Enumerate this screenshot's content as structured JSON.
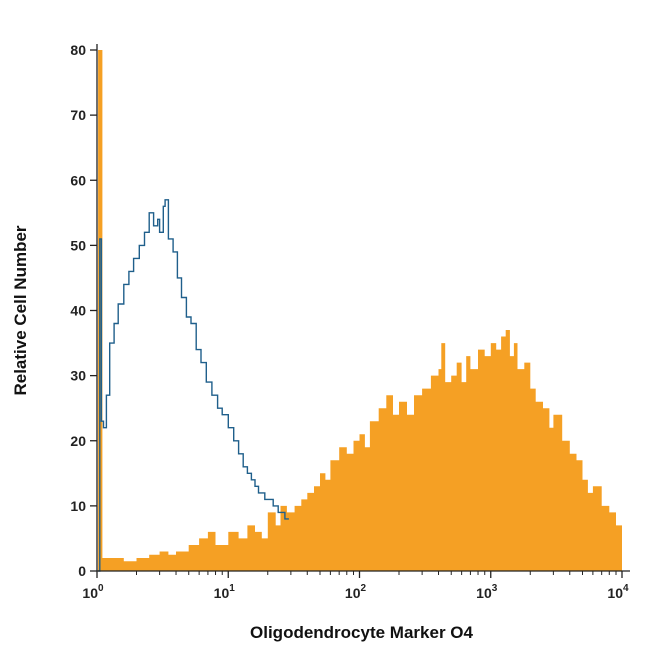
{
  "chart_data": {
    "type": "area",
    "title": "",
    "xlabel": "Oligodendrocyte Marker O4",
    "ylabel": "Relative Cell Number",
    "xscale": "log",
    "xlim": [
      1,
      10000
    ],
    "ylim": [
      0,
      80
    ],
    "grid": false,
    "legend": "none",
    "x_tick_labels": [
      {
        "base": "10",
        "exp": "0",
        "value": 1
      },
      {
        "base": "10",
        "exp": "1",
        "value": 10
      },
      {
        "base": "10",
        "exp": "2",
        "value": 100
      },
      {
        "base": "10",
        "exp": "3",
        "value": 1000
      },
      {
        "base": "10",
        "exp": "4",
        "value": 10000
      }
    ],
    "y_ticks": [
      0,
      10,
      20,
      30,
      40,
      50,
      60,
      70,
      80
    ],
    "series": [
      {
        "style": "filled",
        "color": "#f5a024",
        "x": [
          1.02,
          1.1,
          1.3,
          1.6,
          2,
          2.5,
          3,
          3.5,
          4,
          5,
          6,
          7,
          8,
          10,
          12,
          14,
          16,
          18,
          20,
          23,
          25,
          28,
          32,
          36,
          40,
          45,
          50,
          55,
          60,
          70,
          80,
          90,
          100,
          110,
          120,
          140,
          160,
          180,
          200,
          230,
          260,
          300,
          350,
          400,
          420,
          450,
          500,
          550,
          600,
          650,
          700,
          800,
          900,
          1000,
          1100,
          1200,
          1300,
          1400,
          1500,
          1600,
          1800,
          2000,
          2200,
          2500,
          2800,
          3000,
          3500,
          4000,
          4500,
          5000,
          5500,
          6000,
          7000,
          8000,
          9000,
          10000
        ],
        "y": [
          80,
          2,
          2,
          1.5,
          2,
          2.5,
          3,
          2.5,
          3,
          4,
          5,
          6,
          4,
          6,
          5,
          7,
          6,
          5,
          9,
          7,
          10,
          9,
          10,
          11,
          12,
          13,
          15,
          14,
          17,
          19,
          18,
          20,
          21,
          19,
          23,
          25,
          27,
          24,
          26,
          24,
          27,
          28,
          30,
          31,
          35,
          29,
          30,
          32,
          29,
          33,
          31,
          34,
          33,
          35,
          34,
          36,
          37,
          33,
          35,
          31,
          32,
          28,
          26,
          25,
          22,
          24,
          20,
          18,
          17,
          14,
          12,
          13,
          10,
          9,
          7,
          6
        ]
      },
      {
        "style": "line",
        "color": "#1f5f8b",
        "x": [
          1.02,
          1.05,
          1.08,
          1.12,
          1.18,
          1.25,
          1.35,
          1.45,
          1.6,
          1.75,
          1.9,
          2.1,
          2.3,
          2.5,
          2.7,
          2.9,
          3.0,
          3.2,
          3.3,
          3.5,
          3.8,
          4.1,
          4.4,
          4.8,
          5.2,
          5.7,
          6.2,
          6.8,
          7.5,
          8.3,
          9.0,
          10,
          11,
          12,
          13,
          14,
          15,
          16,
          17,
          18,
          19,
          20,
          22,
          24,
          26,
          27
        ],
        "y": [
          0,
          51,
          23,
          22,
          27,
          35,
          38,
          41,
          44,
          46,
          48,
          50,
          52,
          55,
          53,
          54,
          52,
          56,
          57,
          51,
          49,
          45,
          42,
          39,
          38,
          34,
          32,
          29,
          27,
          25,
          24,
          22,
          20,
          18,
          16,
          15,
          14,
          13,
          12,
          12,
          11,
          11,
          10,
          9,
          9,
          8
        ]
      }
    ]
  }
}
